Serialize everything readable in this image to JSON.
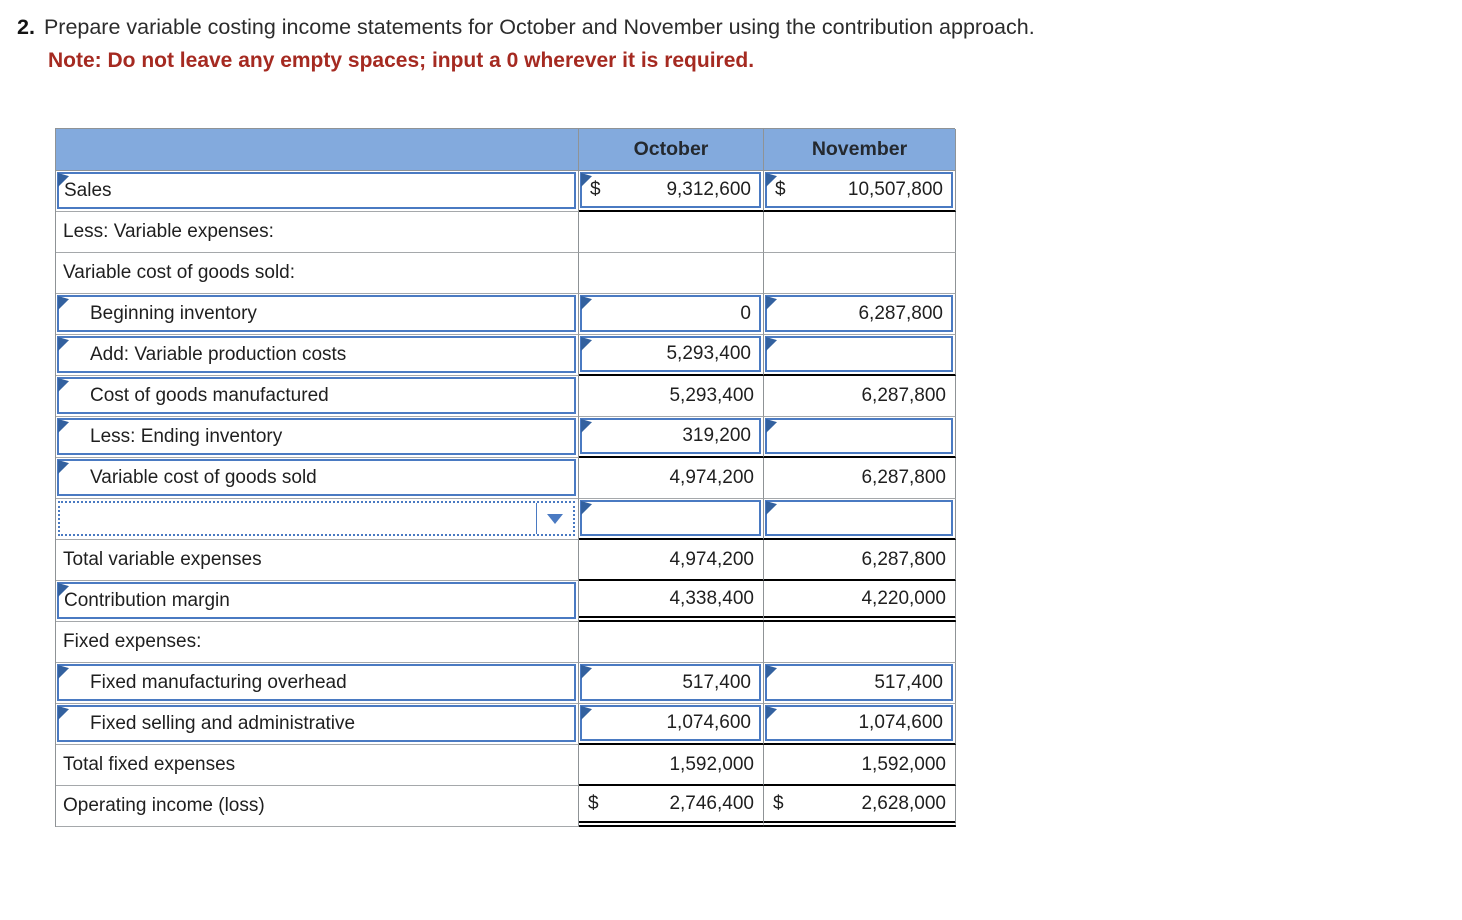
{
  "title": {
    "number": "2.",
    "text": "Prepare variable costing income statements for October and November using the contribution approach.",
    "note": "Note: Do not leave any empty spaces; input a 0 wherever it is required."
  },
  "table": {
    "columns": [
      "October",
      "November"
    ],
    "rows": [
      {
        "label": "Sales",
        "label_input": true,
        "cells": [
          {
            "prefix": "$",
            "value": "9,312,600",
            "input": true
          },
          {
            "prefix": "$",
            "value": "10,507,800",
            "input": true
          }
        ],
        "rule": "single"
      },
      {
        "label": "Less: Variable expenses:",
        "cells": [
          {
            "value": ""
          },
          {
            "value": ""
          }
        ]
      },
      {
        "label": "Variable cost of goods sold:",
        "cells": [
          {
            "value": ""
          },
          {
            "value": ""
          }
        ]
      },
      {
        "label": "Beginning inventory",
        "indent": true,
        "label_input": true,
        "cells": [
          {
            "value": "0",
            "input": true
          },
          {
            "value": "6,287,800",
            "input": true
          }
        ]
      },
      {
        "label": "Add: Variable production costs",
        "indent": true,
        "label_input": true,
        "cells": [
          {
            "value": "5,293,400",
            "input": true
          },
          {
            "value": "",
            "input": true
          }
        ],
        "rule": "single"
      },
      {
        "label": "Cost of goods manufactured",
        "indent": true,
        "label_input": true,
        "cells": [
          {
            "value": "5,293,400"
          },
          {
            "value": "6,287,800"
          }
        ]
      },
      {
        "label": "Less: Ending inventory",
        "indent": true,
        "label_input": true,
        "cells": [
          {
            "value": "319,200",
            "input": true
          },
          {
            "value": "",
            "input": true
          }
        ],
        "rule": "single"
      },
      {
        "label": "Variable cost of goods sold",
        "indent": true,
        "label_input": true,
        "cells": [
          {
            "value": "4,974,200"
          },
          {
            "value": "6,287,800"
          }
        ]
      },
      {
        "label": "",
        "dropdown": true,
        "cells": [
          {
            "value": "",
            "input": true
          },
          {
            "value": "",
            "input": true
          }
        ],
        "rule": "single"
      },
      {
        "label": "Total variable expenses",
        "cells": [
          {
            "value": "4,974,200"
          },
          {
            "value": "6,287,800"
          }
        ],
        "rule": "single"
      },
      {
        "label": "Contribution margin",
        "label_input": true,
        "cells": [
          {
            "value": "4,338,400"
          },
          {
            "value": "4,220,000"
          }
        ],
        "rule": "double"
      },
      {
        "label": "Fixed expenses:",
        "cells": [
          {
            "value": ""
          },
          {
            "value": ""
          }
        ]
      },
      {
        "label": "Fixed manufacturing overhead",
        "indent": true,
        "label_input": true,
        "cells": [
          {
            "value": "517,400",
            "input": true
          },
          {
            "value": "517,400",
            "input": true
          }
        ]
      },
      {
        "label": "Fixed selling and administrative",
        "indent": true,
        "label_input": true,
        "cells": [
          {
            "value": "1,074,600",
            "input": true
          },
          {
            "value": "1,074,600",
            "input": true
          }
        ],
        "rule": "single"
      },
      {
        "label": "Total fixed expenses",
        "cells": [
          {
            "value": "1,592,000"
          },
          {
            "value": "1,592,000"
          }
        ],
        "rule": "single"
      },
      {
        "label": "Operating income (loss)",
        "cells": [
          {
            "prefix": "$",
            "value": "2,746,400"
          },
          {
            "prefix": "$",
            "value": "2,628,000"
          }
        ],
        "rule": "double"
      }
    ]
  },
  "icons": {
    "dropdown_arrow": "triangle-down",
    "answer_flag": "corner-flag"
  },
  "colors": {
    "header-fill": "#83aadd",
    "header-text": "#24292f",
    "grid": "#8f9396",
    "grid-light": "#a5a8ab",
    "input-border": "#4a7ac2",
    "flag": "#33619f",
    "rule": "#000000",
    "note": "#a52a21",
    "text": "#1f1f1f"
  }
}
